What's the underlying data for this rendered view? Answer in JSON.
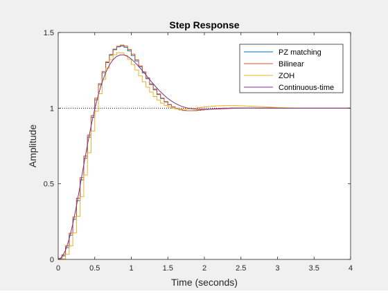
{
  "chart_data": {
    "type": "line",
    "title": "Step Response",
    "xlabel": "Time (seconds)",
    "ylabel": "Amplitude",
    "xlim": [
      0,
      4
    ],
    "ylim": [
      0,
      1.5
    ],
    "xticks": [
      0,
      0.5,
      1,
      1.5,
      2,
      2.5,
      3,
      3.5,
      4
    ],
    "xtick_labels": [
      "0",
      "0.5",
      "1",
      "1.5",
      "2",
      "2.5",
      "3",
      "3.5",
      "4"
    ],
    "yticks": [
      0,
      0.5,
      1,
      1.5
    ],
    "ytick_labels": [
      "0",
      "0.5",
      "1",
      "1.5"
    ],
    "grid": false,
    "legend_position": "top-right",
    "reference_line": {
      "y": 1,
      "style": "dotted"
    },
    "sample_time": 0.05,
    "series": [
      {
        "name": "PZ matching",
        "style": "stairs",
        "color": "#0072BD",
        "x": [
          0,
          0.05,
          0.1,
          0.15,
          0.2,
          0.25,
          0.3,
          0.35,
          0.4,
          0.45,
          0.5,
          0.55,
          0.6,
          0.65,
          0.7,
          0.75,
          0.8,
          0.85,
          0.9,
          0.95,
          1,
          1.05,
          1.1,
          1.15,
          1.2,
          1.25,
          1.3,
          1.35,
          1.4,
          1.45,
          1.5,
          1.55,
          1.6,
          1.65,
          1.7,
          1.75,
          1.8,
          1.85,
          1.9,
          1.95,
          2,
          2.05,
          2.1,
          2.15,
          2.2,
          2.25,
          2.3,
          2.35,
          2.4,
          2.45,
          2.5,
          2.55,
          2.6,
          2.65,
          2.7,
          2.75,
          2.8,
          2.85,
          2.9,
          2.95,
          3,
          3.05,
          3.1,
          3.15,
          3.2,
          3.25,
          3.3,
          3.35,
          3.4,
          3.45,
          3.5,
          3.55,
          3.6,
          3.65,
          3.7,
          3.75,
          3.8,
          3.85,
          3.9,
          3.95,
          4
        ],
        "y": [
          0,
          0.023,
          0.078,
          0.16,
          0.265,
          0.389,
          0.526,
          0.669,
          0.809,
          0.939,
          1.055,
          1.154,
          1.234,
          1.301,
          1.35,
          1.386,
          1.405,
          1.411,
          1.402,
          1.379,
          1.348,
          1.312,
          1.273,
          1.233,
          1.194,
          1.156,
          1.121,
          1.09,
          1.063,
          1.041,
          1.022,
          1.007,
          0.996,
          0.989,
          0.985,
          0.983,
          0.983,
          0.984,
          0.986,
          0.988,
          0.991,
          0.993,
          0.995,
          0.997,
          0.999,
          1.0,
          1.0,
          1.001,
          1.001,
          1.001,
          1.001,
          1.001,
          1.001,
          1.001,
          1.0,
          1.0,
          1.0,
          1.0,
          1.0,
          1.0,
          1.0,
          1.0,
          1.0,
          1.0,
          1.0,
          1.0,
          1.0,
          1.0,
          1.0,
          1.0,
          1.0,
          1.0,
          1.0,
          1.0,
          1.0,
          1.0,
          1.0,
          1.0,
          1.0,
          1.0,
          1.0
        ]
      },
      {
        "name": "Bilinear",
        "style": "stairs",
        "color": "#D95319",
        "x": [
          0,
          0.05,
          0.1,
          0.15,
          0.2,
          0.25,
          0.3,
          0.35,
          0.4,
          0.45,
          0.5,
          0.55,
          0.6,
          0.65,
          0.7,
          0.75,
          0.8,
          0.85,
          0.9,
          0.95,
          1,
          1.05,
          1.1,
          1.15,
          1.2,
          1.25,
          1.3,
          1.35,
          1.4,
          1.45,
          1.5,
          1.55,
          1.6,
          1.65,
          1.7,
          1.75,
          1.8,
          1.85,
          1.9,
          1.95,
          2,
          2.05,
          2.1,
          2.15,
          2.2,
          2.25,
          2.3,
          2.35,
          2.4,
          2.45,
          2.5,
          2.55,
          2.6,
          2.65,
          2.7,
          2.75,
          2.8,
          2.85,
          2.9,
          2.95,
          3,
          3.05,
          3.1,
          3.15,
          3.2,
          3.25,
          3.3,
          3.35,
          3.4,
          3.45,
          3.5,
          3.55,
          3.6,
          3.65,
          3.7,
          3.75,
          3.8,
          3.85,
          3.9,
          3.95,
          4
        ],
        "y": [
          0.005,
          0.031,
          0.089,
          0.173,
          0.28,
          0.405,
          0.541,
          0.683,
          0.822,
          0.951,
          1.066,
          1.163,
          1.243,
          1.307,
          1.355,
          1.39,
          1.409,
          1.417,
          1.41,
          1.388,
          1.357,
          1.32,
          1.28,
          1.24,
          1.2,
          1.161,
          1.126,
          1.094,
          1.066,
          1.043,
          1.024,
          1.009,
          0.997,
          0.99,
          0.985,
          0.983,
          0.983,
          0.984,
          0.986,
          0.988,
          0.991,
          0.993,
          0.995,
          0.997,
          0.999,
          1.0,
          1.0,
          1.001,
          1.001,
          1.001,
          1.001,
          1.001,
          1.001,
          1.001,
          1.0,
          1.0,
          1.0,
          1.0,
          1.0,
          1.0,
          1.0,
          1.0,
          1.0,
          1.0,
          1.0,
          1.0,
          1.0,
          1.0,
          1.0,
          1.0,
          1.0,
          1.0,
          1.0,
          1.0,
          1.0,
          1.0,
          1.0,
          1.0,
          1.0,
          1.0,
          1.0
        ]
      },
      {
        "name": "ZOH",
        "style": "stairs",
        "color": "#EDB120",
        "x": [
          0,
          0.05,
          0.1,
          0.15,
          0.2,
          0.25,
          0.3,
          0.35,
          0.4,
          0.45,
          0.5,
          0.55,
          0.6,
          0.65,
          0.7,
          0.75,
          0.8,
          0.85,
          0.9,
          0.95,
          1,
          1.05,
          1.1,
          1.15,
          1.2,
          1.25,
          1.3,
          1.35,
          1.4,
          1.45,
          1.5,
          1.55,
          1.6,
          1.65,
          1.7,
          1.75,
          1.8,
          1.85,
          1.9,
          1.95,
          2,
          2.05,
          2.1,
          2.15,
          2.2,
          2.25,
          2.3,
          2.35,
          2.4,
          2.45,
          2.5,
          2.55,
          2.6,
          2.65,
          2.7,
          2.75,
          2.8,
          2.85,
          2.9,
          2.95,
          3,
          3.05,
          3.1,
          3.15,
          3.2,
          3.25,
          3.3,
          3.35,
          3.4,
          3.45,
          3.5,
          3.55,
          3.6,
          3.65,
          3.7,
          3.75,
          3.8,
          3.85,
          3.9,
          3.95,
          4
        ],
        "y": [
          0,
          0.004,
          0.033,
          0.09,
          0.175,
          0.285,
          0.415,
          0.558,
          0.705,
          0.848,
          0.98,
          1.095,
          1.19,
          1.265,
          1.32,
          1.353,
          1.367,
          1.365,
          1.349,
          1.323,
          1.289,
          1.252,
          1.213,
          1.175,
          1.139,
          1.106,
          1.077,
          1.053,
          1.033,
          1.018,
          1.007,
          1.0,
          0.995,
          0.993,
          0.993,
          0.995,
          0.997,
          1.0,
          1.003,
          1.006,
          1.009,
          1.011,
          1.013,
          1.015,
          1.016,
          1.017,
          1.017,
          1.017,
          1.017,
          1.016,
          1.015,
          1.014,
          1.013,
          1.012,
          1.011,
          1.01,
          1.008,
          1.007,
          1.006,
          1.005,
          1.004,
          1.003,
          1.002,
          1.002,
          1.001,
          1.001,
          1.0,
          1.0,
          1.0,
          1.0,
          1.0,
          1.0,
          1.0,
          1.0,
          1.0,
          1.0,
          1.0,
          1.0,
          1.0,
          1.0,
          1.0
        ]
      },
      {
        "name": "Continuous-time",
        "style": "line",
        "color": "#7E2F8E",
        "x": [
          0,
          0.05,
          0.1,
          0.15,
          0.2,
          0.25,
          0.3,
          0.35,
          0.4,
          0.45,
          0.5,
          0.55,
          0.6,
          0.65,
          0.7,
          0.75,
          0.8,
          0.85,
          0.9,
          0.95,
          1,
          1.05,
          1.1,
          1.15,
          1.2,
          1.25,
          1.3,
          1.35,
          1.4,
          1.45,
          1.5,
          1.55,
          1.6,
          1.65,
          1.7,
          1.75,
          1.8,
          1.85,
          1.9,
          1.95,
          2,
          2.1,
          2.2,
          2.3,
          2.4,
          2.5,
          2.6,
          2.7,
          2.8,
          2.9,
          3,
          3.2,
          3.4,
          3.6,
          3.8,
          4
        ],
        "y": [
          0,
          0.015,
          0.06,
          0.135,
          0.235,
          0.355,
          0.488,
          0.625,
          0.758,
          0.882,
          0.995,
          1.09,
          1.17,
          1.235,
          1.285,
          1.32,
          1.342,
          1.352,
          1.352,
          1.342,
          1.325,
          1.302,
          1.277,
          1.249,
          1.22,
          1.19,
          1.161,
          1.133,
          1.108,
          1.085,
          1.064,
          1.047,
          1.032,
          1.02,
          1.01,
          1.003,
          0.998,
          0.995,
          0.993,
          0.992,
          0.992,
          0.993,
          0.995,
          0.997,
          0.999,
          1.0,
          1.001,
          1.001,
          1.001,
          1.001,
          1.0,
          1.0,
          1.0,
          1.0,
          1.0,
          1.0
        ]
      }
    ]
  }
}
